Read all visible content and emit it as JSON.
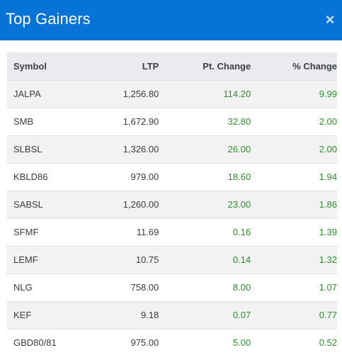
{
  "header": {
    "title": "Top Gainers",
    "close_glyph": "×",
    "close_icon": "close-icon"
  },
  "colors": {
    "header_bg": "#0873d6",
    "positive": "#2f8f2f",
    "row_alt": "#f2f2f2",
    "table_head": "#e9ebee"
  },
  "table": {
    "columns": [
      "Symbol",
      "LTP",
      "Pt. Change",
      "% Change"
    ],
    "rows": [
      {
        "symbol": "JALPA",
        "ltp": "1,256.80",
        "pt_change": "114.20",
        "pct_change": "9.99"
      },
      {
        "symbol": "SMB",
        "ltp": "1,672.90",
        "pt_change": "32.80",
        "pct_change": "2.00"
      },
      {
        "symbol": "SLBSL",
        "ltp": "1,326.00",
        "pt_change": "26.00",
        "pct_change": "2.00"
      },
      {
        "symbol": "KBLD86",
        "ltp": "979.00",
        "pt_change": "18.60",
        "pct_change": "1.94"
      },
      {
        "symbol": "SABSL",
        "ltp": "1,260.00",
        "pt_change": "23.00",
        "pct_change": "1.86"
      },
      {
        "symbol": "SFMF",
        "ltp": "11.69",
        "pt_change": "0.16",
        "pct_change": "1.39"
      },
      {
        "symbol": "LEMF",
        "ltp": "10.75",
        "pt_change": "0.14",
        "pct_change": "1.32"
      },
      {
        "symbol": "NLG",
        "ltp": "758.00",
        "pt_change": "8.00",
        "pct_change": "1.07"
      },
      {
        "symbol": "KEF",
        "ltp": "9.18",
        "pt_change": "0.07",
        "pct_change": "0.77"
      },
      {
        "symbol": "GBD80/81",
        "ltp": "975.00",
        "pt_change": "5.00",
        "pct_change": "0.52"
      }
    ]
  }
}
